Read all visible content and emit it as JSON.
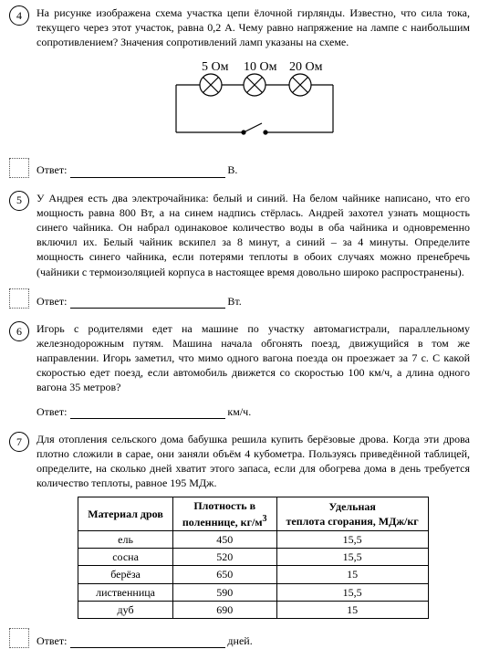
{
  "problems": {
    "p4": {
      "num": "4",
      "text": "На рисунке изображена схема участка цепи ёлочной гирлянды. Известно, что сила тока, текущего через этот участок, равна 0,2 А. Чему равно напряжение на лампе с наибольшим сопротивлением? Значения сопротивлений ламп указаны на схеме.",
      "r_labels": [
        "5 Ом",
        "10 Ом",
        "20 Ом"
      ],
      "answer_label": "Ответ:",
      "unit": "В."
    },
    "p5": {
      "num": "5",
      "text": "У Андрея есть два электрочайника: белый и синий. На белом чайнике написано, что его мощность равна 800 Вт, а на синем надпись стёрлась. Андрей захотел узнать мощность синего чайника. Он набрал одинаковое количество воды в оба чайника и одновременно включил их. Белый чайник вскипел за 8 минут, а синий – за 4 минуты. Определите мощность синего чайника, если потерями теплоты в обоих случаях можно пренебречь (чайники с термоизоляцией корпуса в настоящее время довольно широко распространены).",
      "answer_label": "Ответ:",
      "unit": "Вт."
    },
    "p6": {
      "num": "6",
      "text": "Игорь с родителями едет на машине по участку автомагистрали, параллельному железнодорожным путям. Машина начала обгонять поезд, движущийся в том же направлении. Игорь заметил, что мимо одного вагона поезда он проезжает за 7 с. С какой скоростью едет поезд, если автомобиль движется со скоростью 100 км/ч, а длина одного вагона 35 метров?",
      "answer_label": "Ответ:",
      "unit": "км/ч."
    },
    "p7": {
      "num": "7",
      "text": "Для отопления сельского дома бабушка решила купить берёзовые дрова. Когда эти дрова плотно сложили в сарае, они заняли объём 4 кубометра. Пользуясь приведённой таблицей, определите, на сколько дней хватит этого запаса, если для обогрева дома в день требуется количество теплоты, равное 195 МДж.",
      "table": {
        "headers": [
          "Материал дров",
          "Плотность в\nполеннице, кг/м³",
          "Удельная\nтеплота сгорания, МДж/кг"
        ],
        "rows": [
          [
            "ель",
            "450",
            "15,5"
          ],
          [
            "сосна",
            "520",
            "15,5"
          ],
          [
            "берёза",
            "650",
            "15"
          ],
          [
            "лиственница",
            "590",
            "15,5"
          ],
          [
            "дуб",
            "690",
            "15"
          ]
        ]
      },
      "answer_label": "Ответ:",
      "unit": "дней."
    }
  },
  "circuit": {
    "labels_font_size": 13,
    "stroke": "#000000",
    "stroke_width": 1.2
  }
}
